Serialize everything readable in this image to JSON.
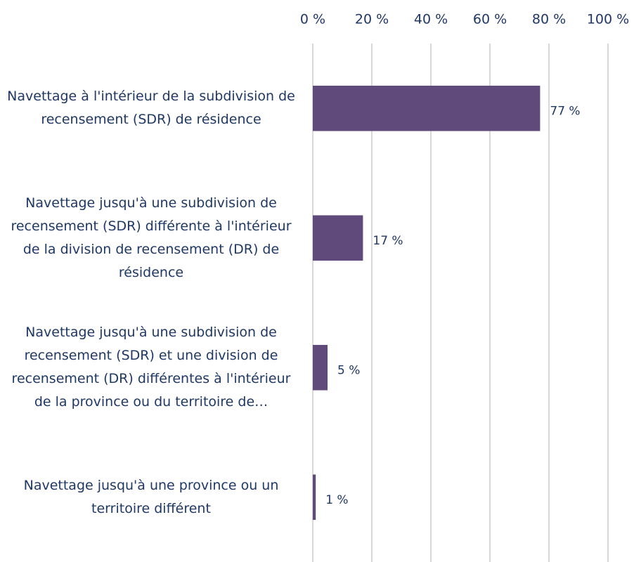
{
  "chart_data": {
    "type": "barh",
    "categories": [
      "Navettage à l'intérieur de la subdivision de recensement (SDR) de résidence",
      "Navettage jusqu'à une subdivision de recensement (SDR) différente à l'intérieur de la division de recensement (DR) de résidence",
      "Navettage jusqu'à une subdivision de recensement (SDR) et une division de recensement (DR) différentes à l'intérieur de la province ou du territoire de…",
      "Navettage jusqu'à une province ou un territoire différent"
    ],
    "values": [
      77,
      17,
      5,
      1
    ],
    "value_labels": [
      "77 %",
      "17 %",
      "5 %",
      "1 %"
    ],
    "color": "#604a7b",
    "xlim": [
      0,
      100
    ],
    "xticks": [
      {
        "value": 0,
        "label": "0 %"
      },
      {
        "value": 20,
        "label": "20 %"
      },
      {
        "value": 40,
        "label": "40 %"
      },
      {
        "value": 60,
        "label": "60 %"
      },
      {
        "value": 80,
        "label": "80 %"
      },
      {
        "value": 100,
        "label": "100 %"
      }
    ],
    "grid": true
  }
}
